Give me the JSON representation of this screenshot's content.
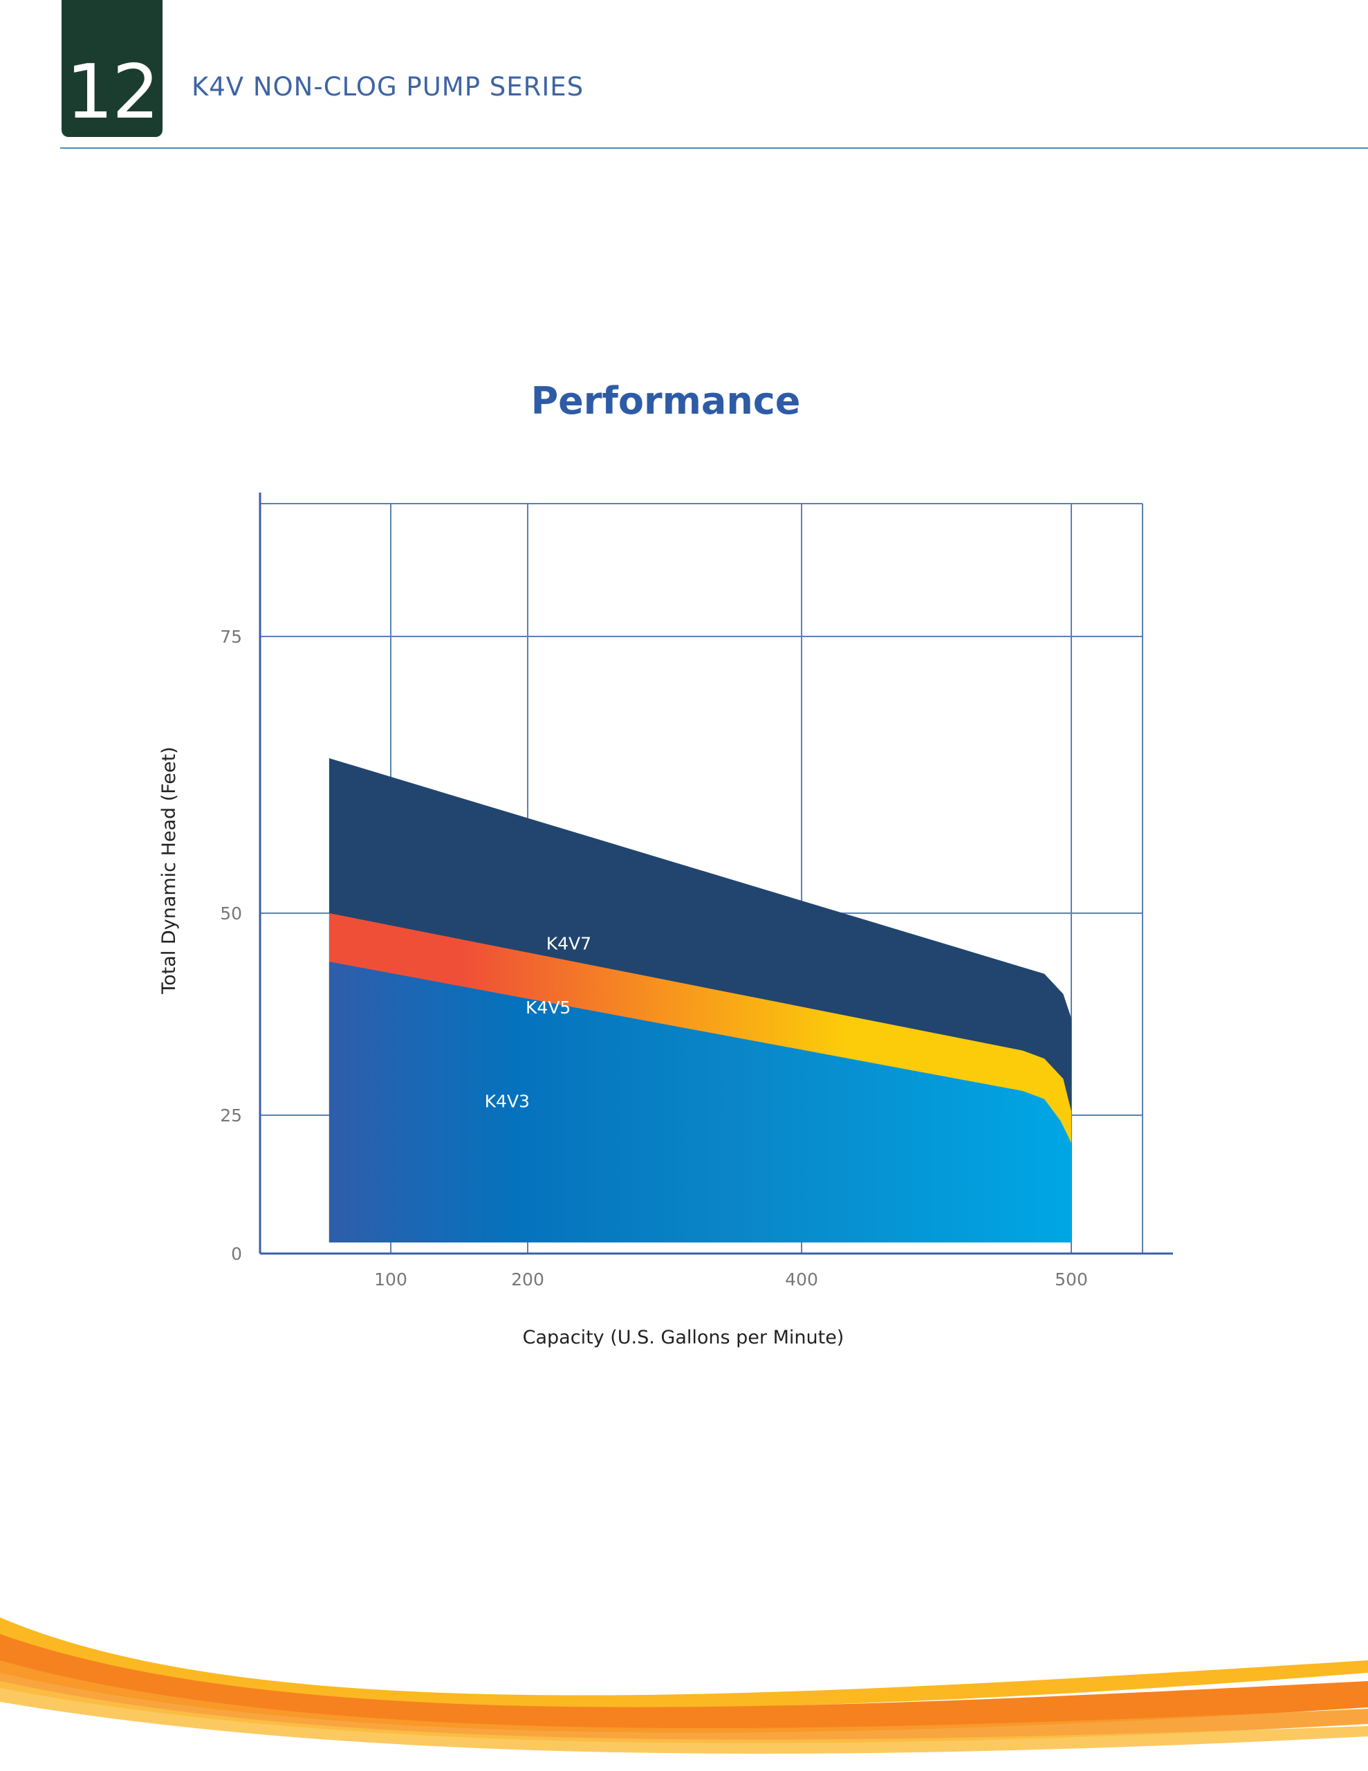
{
  "page": {
    "number": "12",
    "series_title": "K4V NON-CLOG PUMP SERIES"
  },
  "colors": {
    "badge": "#1b3d2f",
    "header_text": "#3e64a3",
    "grid": "#5a7fb8",
    "k4v7": "#21456e",
    "k4v5_start": "#ef4f37",
    "k4v5_end": "#fccc0a",
    "k4v3_start": "#2f5dab",
    "k4v3_end": "#00a6e4",
    "swoosh_orange": "#f5821f",
    "swoosh_yellow": "#fbb416"
  },
  "chart_data": {
    "type": "area",
    "title": "Performance",
    "xlabel": "Capacity (U.S. Gallons per Minute)",
    "ylabel": "Total Dynamic Head (Feet)",
    "xticks": [
      "100",
      "200",
      "400",
      "500"
    ],
    "yticks": [
      "0",
      "25",
      "50",
      "75"
    ],
    "grid": true,
    "series": [
      {
        "name": "K4V7",
        "x": [
          55,
          485,
          490,
          497,
          500,
          500
        ],
        "y": [
          64,
          43,
          42.5,
          40,
          37,
          25
        ]
      },
      {
        "name": "K4V5",
        "x": [
          55,
          482,
          490,
          497,
          500,
          500
        ],
        "y": [
          50,
          33,
          32,
          29.5,
          25.5,
          19
        ]
      },
      {
        "name": "K4V3",
        "x": [
          55,
          482,
          490,
          496,
          500,
          500
        ],
        "y": [
          44,
          28,
          27,
          24,
          20,
          2
        ]
      }
    ]
  }
}
